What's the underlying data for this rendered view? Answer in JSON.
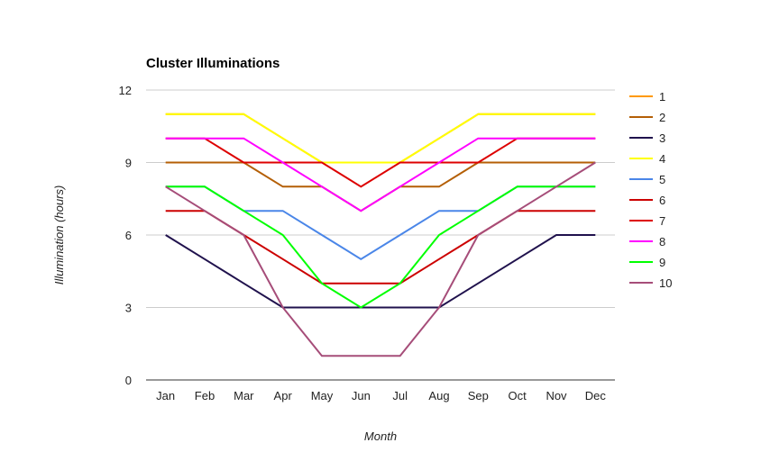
{
  "chart_data": {
    "type": "line",
    "title": "Cluster Illuminations",
    "xlabel": "Month",
    "ylabel": "Illumination (hours)",
    "categories": [
      "Jan",
      "Feb",
      "Mar",
      "Apr",
      "May",
      "Jun",
      "Jul",
      "Aug",
      "Sep",
      "Oct",
      "Nov",
      "Dec"
    ],
    "ylim": [
      0,
      12
    ],
    "yticks": [
      "0",
      "3",
      "6",
      "9",
      "12"
    ],
    "grid": true,
    "legend_position": "right",
    "series": [
      {
        "name": "1",
        "color": "#ff9900",
        "values": [
          11,
          11,
          11,
          10,
          9,
          9,
          9,
          10,
          11,
          11,
          11,
          11
        ]
      },
      {
        "name": "2",
        "color": "#b45f06",
        "values": [
          9,
          9,
          9,
          8,
          8,
          7,
          8,
          8,
          9,
          9,
          9,
          9
        ]
      },
      {
        "name": "3",
        "color": "#20124d",
        "values": [
          6,
          5,
          4,
          3,
          3,
          3,
          3,
          3,
          4,
          5,
          6,
          6
        ]
      },
      {
        "name": "4",
        "color": "#ffff00",
        "values": [
          11,
          11,
          11,
          10,
          9,
          9,
          9,
          10,
          11,
          11,
          11,
          11
        ]
      },
      {
        "name": "5",
        "color": "#4a86e8",
        "values": [
          8,
          8,
          7,
          7,
          6,
          5,
          6,
          7,
          7,
          8,
          8,
          8
        ]
      },
      {
        "name": "6",
        "color": "#cc0000",
        "values": [
          7,
          7,
          6,
          5,
          4,
          4,
          4,
          5,
          6,
          7,
          7,
          7
        ]
      },
      {
        "name": "7",
        "color": "#dd0000",
        "values": [
          10,
          10,
          9,
          9,
          9,
          8,
          9,
          9,
          9,
          10,
          10,
          10
        ]
      },
      {
        "name": "8",
        "color": "#ff00ff",
        "values": [
          10,
          10,
          10,
          9,
          8,
          7,
          8,
          9,
          10,
          10,
          10,
          10
        ]
      },
      {
        "name": "9",
        "color": "#00ff00",
        "values": [
          8,
          8,
          7,
          6,
          4,
          3,
          4,
          6,
          7,
          8,
          8,
          8
        ]
      },
      {
        "name": "10",
        "color": "#a64d79",
        "values": [
          8,
          7,
          6,
          3,
          1,
          1,
          1,
          3,
          6,
          7,
          8,
          9
        ]
      }
    ]
  }
}
